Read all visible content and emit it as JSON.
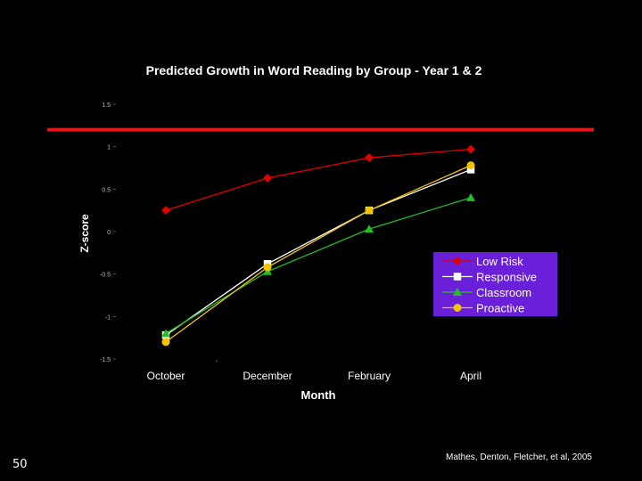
{
  "slide": {
    "number": "50",
    "citation": "Mathes, Denton, Fletcher, et al, 2005"
  },
  "colors": {
    "background": "#000000",
    "reference_line": "#e8161b",
    "legend_background": "#6a1fd8",
    "text": "#ffffff"
  },
  "chart_data": {
    "type": "line",
    "title": "Predicted Growth in Word Reading by Group - Year 1 & 2",
    "xlabel": "Month",
    "ylabel": "Z-score",
    "categories": [
      "October",
      "December",
      "February",
      "April"
    ],
    "ylim": [
      -1.5,
      1.5
    ],
    "y_ticks": [
      1.5,
      1,
      0.5,
      0,
      -0.5,
      -1,
      -1.5
    ],
    "y_tick_labels": [
      "1.5",
      "1",
      "0.5",
      "0",
      "-0.5",
      "-1",
      "-1.5"
    ],
    "reference_line": {
      "y": 1.2,
      "color": "#e8161b"
    },
    "grid": false,
    "legend_position": "right",
    "series": [
      {
        "name": "Low Risk",
        "values": [
          0.25,
          0.63,
          0.87,
          0.97
        ],
        "color": "#e00000",
        "marker": "diamond"
      },
      {
        "name": "Responsive",
        "values": [
          -1.22,
          -0.38,
          0.25,
          0.73
        ],
        "color": "#ffffff",
        "marker": "square"
      },
      {
        "name": "Classroom",
        "values": [
          -1.2,
          -0.47,
          0.03,
          0.4
        ],
        "color": "#22c022",
        "marker": "triangle"
      },
      {
        "name": "Proactive",
        "values": [
          -1.3,
          -0.42,
          0.25,
          0.78
        ],
        "color": "#f5c400",
        "marker": "circle"
      }
    ]
  }
}
